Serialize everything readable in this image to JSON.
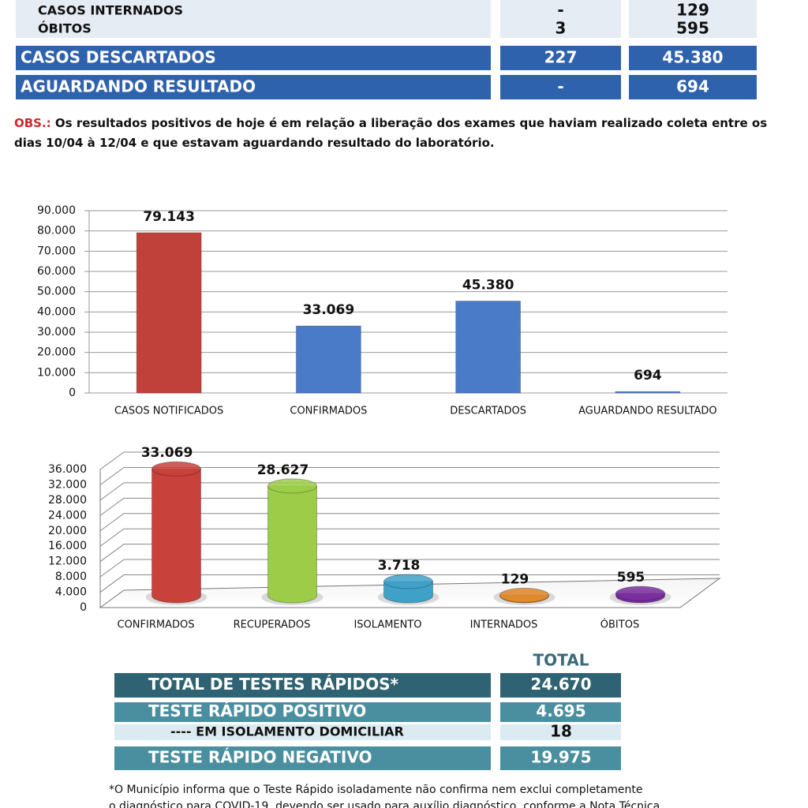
{
  "status_table": {
    "rows": [
      [
        "CASOS INTERNADOS",
        "-",
        "129"
      ],
      [
        "ÓBITOS",
        "3",
        "595"
      ],
      [
        "CASOS DESCARTADOS",
        "227",
        "45.380"
      ],
      [
        "AGUARDANDO RESULTADO",
        "-",
        "694"
      ]
    ]
  },
  "obs": {
    "label": "OBS.:",
    "text": "Os resultados positivos de hoje é em relação a liberação dos exames que haviam realizado coleta entre os dias 10/04 à 12/04 e que estavam aguardando resultado do laboratório."
  },
  "chart_data": [
    {
      "type": "bar",
      "categories": [
        "CASOS NOTIFICADOS",
        "CONFIRMADOS",
        "DESCARTADOS",
        "AGUARDANDO RESULTADO"
      ],
      "values": [
        79143,
        33069,
        45380,
        694
      ],
      "value_labels": [
        "79.143",
        "33.069",
        "45.380",
        "694"
      ],
      "colors": [
        "#c0413a",
        "#4a7bc8",
        "#4a7bc8",
        "#4a7bc8"
      ],
      "ylim": [
        0,
        90000
      ],
      "yticks": [
        0,
        {
          "value": 10000,
          "label": "10.000"
        },
        {
          "value": 20000,
          "label": "20.000"
        },
        {
          "value": 30000,
          "label": "30.000"
        },
        {
          "value": 40000,
          "label": "40.000"
        },
        {
          "value": 50000,
          "label": "50.000"
        },
        {
          "value": 60000,
          "label": "60.000"
        },
        {
          "value": 70000,
          "label": "70.000"
        },
        {
          "value": 80000,
          "label": "80.000"
        },
        {
          "value": 90000,
          "label": "90.000"
        }
      ],
      "grid": true
    },
    {
      "type": "cylinder",
      "categories": [
        "CONFIRMADOS",
        "RECUPERADOS",
        "ISOLAMENTO",
        "INTERNADOS",
        "ÓBITOS"
      ],
      "values": [
        33069,
        28627,
        3718,
        129,
        595
      ],
      "value_labels": [
        "33.069",
        "28.627",
        "3.718",
        "129",
        "595"
      ],
      "colors": [
        "#c8413a",
        "#9ccc48",
        "#3fa0c8",
        "#e08a2c",
        "#7a2fa0"
      ],
      "ylim": [
        0,
        36000
      ],
      "yticks": [
        0,
        {
          "value": 4000,
          "label": "4.000"
        },
        {
          "value": 8000,
          "label": "8.000"
        },
        {
          "value": 12000,
          "label": "12.000"
        },
        {
          "value": 16000,
          "label": "16.000"
        },
        {
          "value": 20000,
          "label": "20.000"
        },
        {
          "value": 24000,
          "label": "24.000"
        },
        {
          "value": 28000,
          "label": "28.000"
        },
        {
          "value": 32000,
          "label": "32.000"
        },
        {
          "value": 36000,
          "label": "36.000"
        }
      ],
      "grid": true
    }
  ],
  "rapid_tests": {
    "header": "TOTAL",
    "rows": [
      [
        "TOTAL DE TESTES RÁPIDOS*",
        "24.670"
      ],
      [
        "TESTE RÁPIDO POSITIVO",
        "4.695"
      ],
      [
        "---- EM ISOLAMENTO DOMICILIAR",
        "18"
      ],
      [
        "TESTE RÁPIDO NEGATIVO",
        "19.975"
      ]
    ]
  },
  "footnote": [
    "*O Município informa  que o Teste Rápido isoladamente não confirma nem exclui completamente",
    "o diagnóstico para COVID-19, devendo ser usado para auxílio diagnóstico, conforme a Nota Técnica"
  ]
}
